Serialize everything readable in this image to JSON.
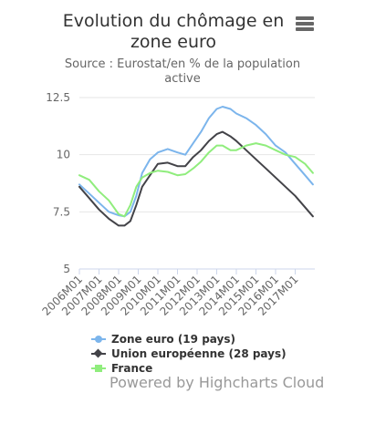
{
  "header": {
    "title_line1": "Evolution du chômage en",
    "title_line2": "zone euro",
    "subtitle_line1": "Source : Eurostat/en % de la population",
    "subtitle_line2": "active"
  },
  "credits": "Powered by Highcharts Cloud",
  "chart_data": {
    "type": "line",
    "title": "Evolution du chômage en zone euro",
    "subtitle": "Source : Eurostat/en % de la population active",
    "xlabel": "",
    "ylabel": "",
    "ylim": [
      5,
      12.5
    ],
    "yticks": [
      5,
      7.5,
      10,
      12.5
    ],
    "y_tick_labels": [
      "5",
      "7.5",
      "10",
      "12.5"
    ],
    "x_tick_labels": [
      "2006M01",
      "2007M01",
      "2008M01",
      "2009M01",
      "2010M01",
      "2011M01",
      "2012M01",
      "2013M01",
      "2014M01",
      "2015M01",
      "2016M01",
      "2017M01"
    ],
    "x_start_year": 2006,
    "x_end_year": 2018,
    "grid": true,
    "legend_position": "bottom",
    "series": [
      {
        "name": "Zone euro (19 pays)",
        "color": "#7cb5ec",
        "marker": "circle",
        "points": [
          {
            "x": 2006.0,
            "y": 8.7
          },
          {
            "x": 2006.5,
            "y": 8.3
          },
          {
            "x": 2007.0,
            "y": 7.9
          },
          {
            "x": 2007.5,
            "y": 7.5
          },
          {
            "x": 2008.0,
            "y": 7.35
          },
          {
            "x": 2008.3,
            "y": 7.3
          },
          {
            "x": 2008.6,
            "y": 7.5
          },
          {
            "x": 2008.9,
            "y": 8.2
          },
          {
            "x": 2009.2,
            "y": 9.2
          },
          {
            "x": 2009.6,
            "y": 9.8
          },
          {
            "x": 2010.0,
            "y": 10.1
          },
          {
            "x": 2010.5,
            "y": 10.25
          },
          {
            "x": 2011.0,
            "y": 10.1
          },
          {
            "x": 2011.4,
            "y": 10.0
          },
          {
            "x": 2011.8,
            "y": 10.5
          },
          {
            "x": 2012.2,
            "y": 11.0
          },
          {
            "x": 2012.6,
            "y": 11.6
          },
          {
            "x": 2013.0,
            "y": 12.0
          },
          {
            "x": 2013.3,
            "y": 12.1
          },
          {
            "x": 2013.7,
            "y": 12.0
          },
          {
            "x": 2014.0,
            "y": 11.8
          },
          {
            "x": 2014.5,
            "y": 11.6
          },
          {
            "x": 2015.0,
            "y": 11.3
          },
          {
            "x": 2015.5,
            "y": 10.9
          },
          {
            "x": 2016.0,
            "y": 10.4
          },
          {
            "x": 2016.5,
            "y": 10.1
          },
          {
            "x": 2017.0,
            "y": 9.6
          },
          {
            "x": 2017.5,
            "y": 9.1
          },
          {
            "x": 2017.9,
            "y": 8.7
          }
        ]
      },
      {
        "name": "Union européenne (28 pays)",
        "color": "#434348",
        "marker": "diamond",
        "points": [
          {
            "x": 2006.0,
            "y": 8.6
          },
          {
            "x": 2006.5,
            "y": 8.1
          },
          {
            "x": 2007.0,
            "y": 7.6
          },
          {
            "x": 2007.5,
            "y": 7.2
          },
          {
            "x": 2008.0,
            "y": 6.9
          },
          {
            "x": 2008.3,
            "y": 6.9
          },
          {
            "x": 2008.6,
            "y": 7.1
          },
          {
            "x": 2008.9,
            "y": 7.8
          },
          {
            "x": 2009.2,
            "y": 8.6
          },
          {
            "x": 2009.6,
            "y": 9.1
          },
          {
            "x": 2010.0,
            "y": 9.6
          },
          {
            "x": 2010.5,
            "y": 9.65
          },
          {
            "x": 2011.0,
            "y": 9.5
          },
          {
            "x": 2011.4,
            "y": 9.5
          },
          {
            "x": 2011.8,
            "y": 9.9
          },
          {
            "x": 2012.2,
            "y": 10.2
          },
          {
            "x": 2012.6,
            "y": 10.6
          },
          {
            "x": 2013.0,
            "y": 10.9
          },
          {
            "x": 2013.3,
            "y": 11.0
          },
          {
            "x": 2013.7,
            "y": 10.8
          },
          {
            "x": 2014.0,
            "y": 10.6
          },
          {
            "x": 2014.5,
            "y": 10.2
          },
          {
            "x": 2015.0,
            "y": 9.8
          },
          {
            "x": 2015.5,
            "y": 9.4
          },
          {
            "x": 2016.0,
            "y": 9.0
          },
          {
            "x": 2016.5,
            "y": 8.6
          },
          {
            "x": 2017.0,
            "y": 8.2
          },
          {
            "x": 2017.5,
            "y": 7.7
          },
          {
            "x": 2017.9,
            "y": 7.3
          }
        ]
      },
      {
        "name": "France",
        "color": "#90ed7d",
        "marker": "square",
        "points": [
          {
            "x": 2006.0,
            "y": 9.1
          },
          {
            "x": 2006.5,
            "y": 8.9
          },
          {
            "x": 2007.0,
            "y": 8.4
          },
          {
            "x": 2007.5,
            "y": 8.0
          },
          {
            "x": 2008.0,
            "y": 7.4
          },
          {
            "x": 2008.3,
            "y": 7.3
          },
          {
            "x": 2008.6,
            "y": 7.8
          },
          {
            "x": 2008.9,
            "y": 8.6
          },
          {
            "x": 2009.2,
            "y": 9.0
          },
          {
            "x": 2009.6,
            "y": 9.2
          },
          {
            "x": 2010.0,
            "y": 9.3
          },
          {
            "x": 2010.5,
            "y": 9.25
          },
          {
            "x": 2011.0,
            "y": 9.1
          },
          {
            "x": 2011.4,
            "y": 9.15
          },
          {
            "x": 2011.8,
            "y": 9.4
          },
          {
            "x": 2012.2,
            "y": 9.7
          },
          {
            "x": 2012.6,
            "y": 10.1
          },
          {
            "x": 2013.0,
            "y": 10.4
          },
          {
            "x": 2013.3,
            "y": 10.4
          },
          {
            "x": 2013.7,
            "y": 10.2
          },
          {
            "x": 2014.0,
            "y": 10.2
          },
          {
            "x": 2014.5,
            "y": 10.4
          },
          {
            "x": 2015.0,
            "y": 10.5
          },
          {
            "x": 2015.5,
            "y": 10.4
          },
          {
            "x": 2016.0,
            "y": 10.2
          },
          {
            "x": 2016.5,
            "y": 10.0
          },
          {
            "x": 2017.0,
            "y": 9.9
          },
          {
            "x": 2017.5,
            "y": 9.6
          },
          {
            "x": 2017.9,
            "y": 9.2
          }
        ]
      }
    ]
  }
}
